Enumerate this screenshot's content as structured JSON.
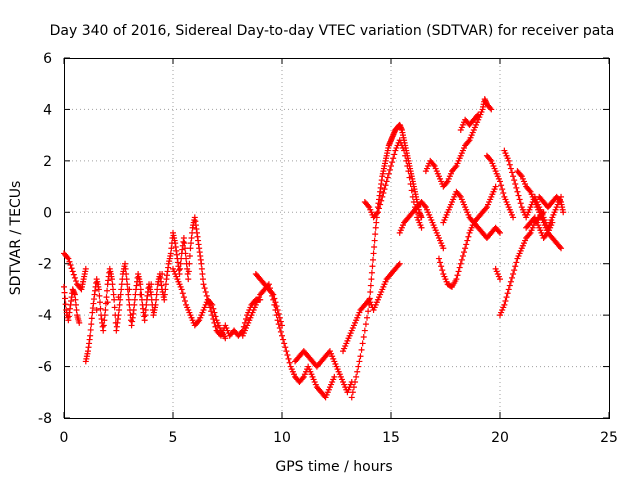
{
  "chart_data": {
    "type": "scatter",
    "title": "Day 340 of 2016, Sidereal Day-to-day VTEC variation (SDTVAR) for receiver pata",
    "xlabel": "GPS time / hours",
    "ylabel": "SDTVAR / TECUs",
    "xlim": [
      0,
      25
    ],
    "ylim": [
      -8,
      6
    ],
    "xticks": [
      "0",
      "5",
      "10",
      "15",
      "20",
      "25"
    ],
    "yticks": [
      "-8",
      "-6",
      "-4",
      "-2",
      "0",
      "2",
      "4",
      "6"
    ],
    "grid": true,
    "marker": "plus",
    "color": "#ff0000",
    "series": [
      {
        "name": "SDTVAR",
        "points": [
          [
            0.0,
            -2.9
          ],
          [
            0.1,
            -3.8
          ],
          [
            0.2,
            -4.2
          ],
          [
            0.3,
            -3.6
          ],
          [
            0.4,
            -3.0
          ],
          [
            0.5,
            -3.2
          ],
          [
            0.6,
            -4.0
          ],
          [
            0.7,
            -4.3
          ],
          [
            0.0,
            -1.6
          ],
          [
            0.2,
            -1.8
          ],
          [
            0.4,
            -2.3
          ],
          [
            0.6,
            -2.8
          ],
          [
            0.8,
            -3.0
          ],
          [
            0.9,
            -2.6
          ],
          [
            1.0,
            -2.2
          ],
          [
            1.0,
            -5.8
          ],
          [
            1.1,
            -5.4
          ],
          [
            1.2,
            -4.8
          ],
          [
            1.3,
            -3.9
          ],
          [
            1.4,
            -3.2
          ],
          [
            1.5,
            -2.6
          ],
          [
            1.6,
            -3.0
          ],
          [
            1.7,
            -4.0
          ],
          [
            1.8,
            -4.6
          ],
          [
            1.9,
            -3.8
          ],
          [
            2.0,
            -2.8
          ],
          [
            2.1,
            -2.2
          ],
          [
            2.2,
            -2.6
          ],
          [
            2.3,
            -3.4
          ],
          [
            2.4,
            -4.6
          ],
          [
            2.5,
            -4.0
          ],
          [
            2.6,
            -3.2
          ],
          [
            2.7,
            -2.4
          ],
          [
            2.8,
            -2.0
          ],
          [
            2.9,
            -2.8
          ],
          [
            3.0,
            -3.6
          ],
          [
            3.1,
            -4.4
          ],
          [
            3.2,
            -3.8
          ],
          [
            3.3,
            -3.0
          ],
          [
            3.4,
            -2.4
          ],
          [
            3.5,
            -2.8
          ],
          [
            3.6,
            -3.6
          ],
          [
            3.7,
            -4.2
          ],
          [
            3.8,
            -3.4
          ],
          [
            3.9,
            -2.8
          ],
          [
            4.0,
            -3.2
          ],
          [
            4.1,
            -4.0
          ],
          [
            4.2,
            -3.6
          ],
          [
            4.3,
            -2.8
          ],
          [
            4.4,
            -2.4
          ],
          [
            4.5,
            -3.0
          ],
          [
            4.6,
            -3.4
          ],
          [
            4.7,
            -2.6
          ],
          [
            4.8,
            -2.0
          ],
          [
            4.9,
            -1.6
          ],
          [
            5.0,
            -0.8
          ],
          [
            5.1,
            -1.2
          ],
          [
            5.2,
            -1.8
          ],
          [
            5.3,
            -2.4
          ],
          [
            5.4,
            -1.6
          ],
          [
            5.5,
            -1.0
          ],
          [
            5.6,
            -1.8
          ],
          [
            5.7,
            -2.6
          ],
          [
            5.8,
            -1.4
          ],
          [
            5.9,
            -0.6
          ],
          [
            6.0,
            -0.2
          ],
          [
            6.1,
            -0.8
          ],
          [
            6.2,
            -1.4
          ],
          [
            6.3,
            -2.0
          ],
          [
            6.4,
            -2.8
          ],
          [
            6.6,
            -3.4
          ],
          [
            6.8,
            -4.0
          ],
          [
            7.0,
            -4.6
          ],
          [
            7.2,
            -4.8
          ],
          [
            7.4,
            -4.4
          ],
          [
            7.6,
            -4.8
          ],
          [
            7.8,
            -4.6
          ],
          [
            1.5,
            -3.8
          ],
          [
            2.0,
            -3.5
          ],
          [
            2.5,
            -3.3
          ],
          [
            3.0,
            -3.0
          ],
          [
            3.5,
            -3.2
          ],
          [
            4.0,
            -2.8
          ],
          [
            4.5,
            -2.4
          ],
          [
            5.0,
            -2.2
          ],
          [
            5.2,
            -2.6
          ],
          [
            5.4,
            -3.0
          ],
          [
            5.6,
            -3.6
          ],
          [
            5.8,
            -4.0
          ],
          [
            6.0,
            -4.4
          ],
          [
            6.2,
            -4.2
          ],
          [
            6.4,
            -3.8
          ],
          [
            6.6,
            -3.4
          ],
          [
            6.8,
            -3.6
          ],
          [
            7.0,
            -4.2
          ],
          [
            7.2,
            -4.6
          ],
          [
            7.4,
            -4.9
          ],
          [
            8.2,
            -4.8
          ],
          [
            8.4,
            -4.4
          ],
          [
            8.6,
            -4.0
          ],
          [
            8.8,
            -3.6
          ],
          [
            9.0,
            -3.2
          ],
          [
            9.2,
            -3.0
          ],
          [
            9.4,
            -2.8
          ],
          [
            9.6,
            -3.4
          ],
          [
            9.8,
            -4.2
          ],
          [
            10.0,
            -4.8
          ],
          [
            10.2,
            -5.4
          ],
          [
            10.4,
            -6.0
          ],
          [
            10.6,
            -6.4
          ],
          [
            10.8,
            -6.6
          ],
          [
            11.0,
            -6.4
          ],
          [
            11.2,
            -6.0
          ],
          [
            11.4,
            -6.4
          ],
          [
            11.6,
            -6.8
          ],
          [
            11.8,
            -7.0
          ],
          [
            12.0,
            -7.2
          ],
          [
            12.2,
            -6.8
          ],
          [
            12.4,
            -6.4
          ],
          [
            8.8,
            -2.4
          ],
          [
            9.0,
            -2.6
          ],
          [
            9.2,
            -2.8
          ],
          [
            9.4,
            -3.0
          ],
          [
            9.6,
            -3.2
          ],
          [
            9.8,
            -3.8
          ],
          [
            10.0,
            -4.4
          ],
          [
            7.8,
            -4.6
          ],
          [
            8.0,
            -4.8
          ],
          [
            8.2,
            -4.6
          ],
          [
            8.4,
            -4.0
          ],
          [
            8.6,
            -3.6
          ],
          [
            8.8,
            -3.4
          ],
          [
            9.0,
            -3.4
          ],
          [
            10.6,
            -5.8
          ],
          [
            10.8,
            -5.6
          ],
          [
            11.0,
            -5.4
          ],
          [
            11.2,
            -5.6
          ],
          [
            11.4,
            -5.8
          ],
          [
            11.6,
            -6.0
          ],
          [
            11.8,
            -5.8
          ],
          [
            12.0,
            -5.6
          ],
          [
            12.2,
            -5.4
          ],
          [
            12.4,
            -5.8
          ],
          [
            12.6,
            -6.2
          ],
          [
            12.8,
            -6.6
          ],
          [
            13.0,
            -7.0
          ],
          [
            13.2,
            -6.6
          ],
          [
            12.8,
            -5.4
          ],
          [
            13.0,
            -5.0
          ],
          [
            13.2,
            -4.6
          ],
          [
            13.4,
            -4.2
          ],
          [
            13.6,
            -3.8
          ],
          [
            13.8,
            -3.6
          ],
          [
            14.0,
            -3.4
          ],
          [
            14.2,
            -3.8
          ],
          [
            14.4,
            -3.4
          ],
          [
            14.6,
            -3.0
          ],
          [
            14.8,
            -2.6
          ],
          [
            15.0,
            -2.4
          ],
          [
            15.2,
            -2.2
          ],
          [
            15.4,
            -2.0
          ],
          [
            13.2,
            -7.2
          ],
          [
            13.4,
            -6.4
          ],
          [
            13.6,
            -5.6
          ],
          [
            13.8,
            -4.6
          ],
          [
            14.0,
            -3.6
          ],
          [
            14.1,
            -2.6
          ],
          [
            14.2,
            -1.6
          ],
          [
            14.3,
            -0.6
          ],
          [
            14.4,
            0.2
          ],
          [
            14.5,
            0.8
          ],
          [
            14.6,
            1.4
          ],
          [
            14.7,
            1.8
          ],
          [
            14.8,
            2.2
          ],
          [
            14.9,
            2.6
          ],
          [
            15.0,
            2.8
          ],
          [
            15.1,
            3.0
          ],
          [
            15.2,
            3.2
          ],
          [
            15.3,
            3.3
          ],
          [
            15.4,
            3.4
          ],
          [
            15.5,
            3.2
          ],
          [
            15.6,
            2.8
          ],
          [
            15.7,
            2.4
          ],
          [
            15.8,
            2.0
          ],
          [
            15.9,
            1.6
          ],
          [
            16.0,
            1.2
          ],
          [
            16.1,
            0.8
          ],
          [
            16.2,
            0.4
          ],
          [
            16.3,
            0.0
          ],
          [
            16.4,
            -0.2
          ],
          [
            13.8,
            0.4
          ],
          [
            14.0,
            0.2
          ],
          [
            14.2,
            -0.2
          ],
          [
            14.4,
            0.0
          ],
          [
            14.6,
            0.6
          ],
          [
            14.8,
            1.2
          ],
          [
            15.0,
            1.8
          ],
          [
            15.2,
            2.4
          ],
          [
            15.4,
            2.8
          ],
          [
            15.6,
            2.4
          ],
          [
            15.8,
            1.6
          ],
          [
            16.0,
            0.6
          ],
          [
            16.2,
            -0.2
          ],
          [
            16.4,
            -0.6
          ],
          [
            15.4,
            -0.8
          ],
          [
            15.6,
            -0.4
          ],
          [
            15.8,
            -0.2
          ],
          [
            16.0,
            0.0
          ],
          [
            16.2,
            0.2
          ],
          [
            16.4,
            0.4
          ],
          [
            16.6,
            0.2
          ],
          [
            16.8,
            -0.2
          ],
          [
            17.0,
            -0.6
          ],
          [
            17.2,
            -1.0
          ],
          [
            17.4,
            -1.4
          ],
          [
            16.6,
            1.6
          ],
          [
            16.8,
            2.0
          ],
          [
            17.0,
            1.8
          ],
          [
            17.2,
            1.4
          ],
          [
            17.4,
            1.0
          ],
          [
            17.6,
            1.2
          ],
          [
            17.8,
            1.6
          ],
          [
            18.0,
            1.8
          ],
          [
            18.2,
            2.2
          ],
          [
            18.4,
            2.6
          ],
          [
            18.6,
            2.8
          ],
          [
            18.8,
            3.2
          ],
          [
            19.0,
            3.6
          ],
          [
            19.2,
            4.0
          ],
          [
            19.3,
            4.4
          ],
          [
            19.4,
            4.2
          ],
          [
            19.6,
            4.0
          ],
          [
            18.2,
            3.2
          ],
          [
            18.4,
            3.6
          ],
          [
            18.6,
            3.4
          ],
          [
            18.8,
            3.6
          ],
          [
            19.0,
            3.8
          ],
          [
            17.2,
            -1.8
          ],
          [
            17.4,
            -2.4
          ],
          [
            17.6,
            -2.8
          ],
          [
            17.8,
            -2.9
          ],
          [
            18.0,
            -2.6
          ],
          [
            18.2,
            -2.0
          ],
          [
            18.4,
            -1.4
          ],
          [
            18.6,
            -0.8
          ],
          [
            18.8,
            -0.4
          ],
          [
            19.0,
            -0.2
          ],
          [
            19.2,
            0.0
          ],
          [
            19.4,
            0.2
          ],
          [
            19.6,
            0.6
          ],
          [
            19.8,
            1.0
          ],
          [
            17.4,
            -0.4
          ],
          [
            17.6,
            0.0
          ],
          [
            17.8,
            0.4
          ],
          [
            18.0,
            0.8
          ],
          [
            18.2,
            0.6
          ],
          [
            18.4,
            0.2
          ],
          [
            18.6,
            -0.2
          ],
          [
            18.8,
            -0.4
          ],
          [
            19.0,
            -0.6
          ],
          [
            19.2,
            -0.8
          ],
          [
            19.4,
            -1.0
          ],
          [
            19.6,
            -0.8
          ],
          [
            19.8,
            -0.6
          ],
          [
            20.0,
            -0.8
          ],
          [
            19.4,
            2.2
          ],
          [
            19.6,
            2.0
          ],
          [
            19.8,
            1.6
          ],
          [
            20.0,
            1.2
          ],
          [
            20.2,
            0.6
          ],
          [
            20.4,
            0.2
          ],
          [
            20.6,
            -0.2
          ],
          [
            19.8,
            -2.2
          ],
          [
            20.0,
            -2.6
          ],
          [
            20.2,
            2.4
          ],
          [
            20.4,
            2.0
          ],
          [
            20.6,
            1.4
          ],
          [
            20.8,
            0.8
          ],
          [
            21.0,
            0.2
          ],
          [
            21.2,
            -0.2
          ],
          [
            21.4,
            0.2
          ],
          [
            21.6,
            0.6
          ],
          [
            21.8,
            0.2
          ],
          [
            22.0,
            -0.2
          ],
          [
            22.2,
            -0.6
          ],
          [
            22.4,
            -0.2
          ],
          [
            22.6,
            0.2
          ],
          [
            22.8,
            0.6
          ],
          [
            20.0,
            -4.0
          ],
          [
            20.2,
            -3.6
          ],
          [
            20.4,
            -3.0
          ],
          [
            20.6,
            -2.4
          ],
          [
            20.8,
            -1.8
          ],
          [
            21.0,
            -1.4
          ],
          [
            21.2,
            -1.0
          ],
          [
            21.4,
            -0.8
          ],
          [
            21.6,
            -0.4
          ],
          [
            21.8,
            -0.2
          ],
          [
            22.0,
            0.0
          ],
          [
            20.8,
            1.6
          ],
          [
            21.0,
            1.4
          ],
          [
            21.2,
            1.0
          ],
          [
            21.4,
            0.8
          ],
          [
            21.6,
            0.4
          ],
          [
            21.8,
            0.0
          ],
          [
            22.0,
            -0.4
          ],
          [
            22.2,
            -0.8
          ],
          [
            22.4,
            -1.0
          ],
          [
            22.6,
            -1.2
          ],
          [
            22.8,
            -1.4
          ],
          [
            21.8,
            0.6
          ],
          [
            22.0,
            0.4
          ],
          [
            22.2,
            0.2
          ],
          [
            22.4,
            0.4
          ],
          [
            22.6,
            0.6
          ],
          [
            22.8,
            0.4
          ],
          [
            22.9,
            0.0
          ],
          [
            21.2,
            -0.6
          ],
          [
            21.4,
            -0.4
          ],
          [
            21.6,
            -0.2
          ],
          [
            21.8,
            -0.6
          ],
          [
            22.0,
            -1.0
          ],
          [
            22.2,
            -0.8
          ],
          [
            22.4,
            -0.4
          ]
        ]
      }
    ]
  }
}
